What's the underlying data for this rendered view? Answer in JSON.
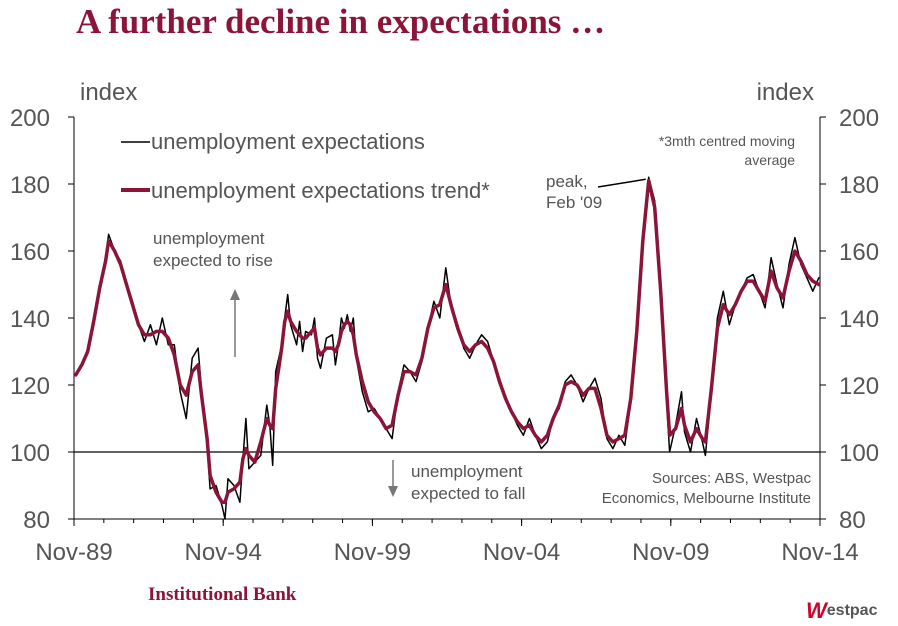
{
  "page_title": "A further decline in expectations …",
  "footer": {
    "institutional_bank": "Institutional Bank",
    "westpac_logo_mark": "W",
    "westpac_logo_text": "estpac",
    "brand_color": "#8b1538",
    "westpac_red": "#d5002b"
  },
  "chart_data": {
    "type": "line",
    "ylim": [
      80,
      200
    ],
    "yticks": [
      80,
      100,
      120,
      140,
      160,
      180,
      200
    ],
    "ylabel_left": "index",
    "ylabel_right": "index",
    "x_range": [
      1989.84,
      2014.84
    ],
    "x_tick_labels": [
      "Nov-89",
      "Nov-94",
      "Nov-99",
      "Nov-04",
      "Nov-09",
      "Nov-14"
    ],
    "x_tick_positions": [
      1989.84,
      1994.84,
      1999.84,
      2004.84,
      2009.84,
      2014.84
    ],
    "reference_line": 100,
    "grid": false,
    "legend_position": "top-left",
    "annotations": {
      "footnote": "*3mth centred moving average",
      "peak": "peak, Feb '09",
      "rise": "unemployment expected to rise",
      "fall": "unemployment expected to fall",
      "sources": "Sources: ABS, Westpac Economics, Melbourne Institute"
    },
    "peak_point": [
      2009.1,
      182
    ],
    "series": [
      {
        "name": "unemployment expectations",
        "color": "#000000",
        "points": [
          [
            1989.9,
            123
          ],
          [
            1990.1,
            126
          ],
          [
            1990.3,
            130
          ],
          [
            1990.5,
            140
          ],
          [
            1990.7,
            150
          ],
          [
            1990.9,
            158
          ],
          [
            1991.0,
            165
          ],
          [
            1991.2,
            160
          ],
          [
            1991.4,
            157
          ],
          [
            1991.6,
            150
          ],
          [
            1991.8,
            145
          ],
          [
            1992.0,
            138
          ],
          [
            1992.2,
            133
          ],
          [
            1992.4,
            138
          ],
          [
            1992.6,
            132
          ],
          [
            1992.8,
            140
          ],
          [
            1993.0,
            132
          ],
          [
            1993.2,
            132
          ],
          [
            1993.4,
            118
          ],
          [
            1993.6,
            110
          ],
          [
            1993.8,
            128
          ],
          [
            1994.0,
            131
          ],
          [
            1994.1,
            120
          ],
          [
            1994.3,
            102
          ],
          [
            1994.4,
            89
          ],
          [
            1994.6,
            90
          ],
          [
            1994.8,
            84
          ],
          [
            1994.9,
            80
          ],
          [
            1995.0,
            92
          ],
          [
            1995.2,
            90
          ],
          [
            1995.4,
            85
          ],
          [
            1995.5,
            98
          ],
          [
            1995.6,
            110
          ],
          [
            1995.7,
            95
          ],
          [
            1995.9,
            97
          ],
          [
            1996.1,
            99
          ],
          [
            1996.3,
            114
          ],
          [
            1996.4,
            108
          ],
          [
            1996.5,
            96
          ],
          [
            1996.6,
            124
          ],
          [
            1996.8,
            132
          ],
          [
            1996.9,
            140
          ],
          [
            1997.0,
            147
          ],
          [
            1997.1,
            138
          ],
          [
            1997.3,
            132
          ],
          [
            1997.4,
            139
          ],
          [
            1997.5,
            130
          ],
          [
            1997.6,
            136
          ],
          [
            1997.8,
            135
          ],
          [
            1997.9,
            140
          ],
          [
            1998.0,
            128
          ],
          [
            1998.1,
            125
          ],
          [
            1998.3,
            134
          ],
          [
            1998.5,
            135
          ],
          [
            1998.6,
            126
          ],
          [
            1998.7,
            132
          ],
          [
            1998.8,
            140
          ],
          [
            1998.9,
            137
          ],
          [
            1999.0,
            141
          ],
          [
            1999.1,
            136
          ],
          [
            1999.2,
            140
          ],
          [
            1999.3,
            128
          ],
          [
            1999.5,
            118
          ],
          [
            1999.7,
            112
          ],
          [
            1999.9,
            113
          ],
          [
            2000.1,
            110
          ],
          [
            2000.3,
            107
          ],
          [
            2000.5,
            104
          ],
          [
            2000.7,
            118
          ],
          [
            2000.9,
            126
          ],
          [
            2001.1,
            124
          ],
          [
            2001.3,
            121
          ],
          [
            2001.5,
            127
          ],
          [
            2001.7,
            137
          ],
          [
            2001.9,
            145
          ],
          [
            2002.1,
            140
          ],
          [
            2002.3,
            155
          ],
          [
            2002.5,
            142
          ],
          [
            2002.7,
            138
          ],
          [
            2002.9,
            131
          ],
          [
            2003.1,
            128
          ],
          [
            2003.3,
            132
          ],
          [
            2003.5,
            135
          ],
          [
            2003.7,
            133
          ],
          [
            2003.9,
            127
          ],
          [
            2004.1,
            122
          ],
          [
            2004.3,
            116
          ],
          [
            2004.5,
            112
          ],
          [
            2004.7,
            108
          ],
          [
            2004.9,
            105
          ],
          [
            2005.1,
            110
          ],
          [
            2005.3,
            105
          ],
          [
            2005.5,
            101
          ],
          [
            2005.7,
            103
          ],
          [
            2005.9,
            110
          ],
          [
            2006.1,
            113
          ],
          [
            2006.3,
            121
          ],
          [
            2006.5,
            123
          ],
          [
            2006.7,
            120
          ],
          [
            2006.9,
            115
          ],
          [
            2007.1,
            119
          ],
          [
            2007.3,
            122
          ],
          [
            2007.5,
            116
          ],
          [
            2007.7,
            104
          ],
          [
            2007.9,
            101
          ],
          [
            2008.1,
            105
          ],
          [
            2008.3,
            102
          ],
          [
            2008.5,
            115
          ],
          [
            2008.7,
            135
          ],
          [
            2008.9,
            165
          ],
          [
            2009.1,
            182
          ],
          [
            2009.3,
            175
          ],
          [
            2009.5,
            150
          ],
          [
            2009.7,
            115
          ],
          [
            2009.8,
            100
          ],
          [
            2010.0,
            108
          ],
          [
            2010.2,
            118
          ],
          [
            2010.3,
            106
          ],
          [
            2010.5,
            100
          ],
          [
            2010.7,
            110
          ],
          [
            2010.9,
            103
          ],
          [
            2011.0,
            99
          ],
          [
            2011.2,
            118
          ],
          [
            2011.4,
            140
          ],
          [
            2011.6,
            148
          ],
          [
            2011.8,
            138
          ],
          [
            2012.0,
            144
          ],
          [
            2012.2,
            148
          ],
          [
            2012.4,
            152
          ],
          [
            2012.6,
            153
          ],
          [
            2012.8,
            148
          ],
          [
            2013.0,
            143
          ],
          [
            2013.2,
            158
          ],
          [
            2013.4,
            150
          ],
          [
            2013.6,
            143
          ],
          [
            2013.8,
            156
          ],
          [
            2014.0,
            164
          ],
          [
            2014.2,
            156
          ],
          [
            2014.4,
            152
          ],
          [
            2014.6,
            148
          ],
          [
            2014.8,
            152
          ]
        ]
      },
      {
        "name": "unemployment expectations trend*",
        "color": "#8b1538",
        "points": [
          [
            1989.9,
            123
          ],
          [
            1990.1,
            126
          ],
          [
            1990.3,
            130
          ],
          [
            1990.5,
            139
          ],
          [
            1990.7,
            149
          ],
          [
            1990.9,
            157
          ],
          [
            1991.0,
            163
          ],
          [
            1991.2,
            160
          ],
          [
            1991.4,
            156
          ],
          [
            1991.6,
            150
          ],
          [
            1991.8,
            144
          ],
          [
            1992.0,
            138
          ],
          [
            1992.2,
            135
          ],
          [
            1992.4,
            135
          ],
          [
            1992.6,
            136
          ],
          [
            1992.8,
            136
          ],
          [
            1993.0,
            134
          ],
          [
            1993.2,
            129
          ],
          [
            1993.4,
            120
          ],
          [
            1993.6,
            117
          ],
          [
            1993.8,
            124
          ],
          [
            1994.0,
            126
          ],
          [
            1994.1,
            118
          ],
          [
            1994.3,
            104
          ],
          [
            1994.4,
            93
          ],
          [
            1994.6,
            88
          ],
          [
            1994.8,
            85
          ],
          [
            1994.9,
            85
          ],
          [
            1995.0,
            88
          ],
          [
            1995.2,
            89
          ],
          [
            1995.4,
            91
          ],
          [
            1995.5,
            98
          ],
          [
            1995.6,
            101
          ],
          [
            1995.7,
            99
          ],
          [
            1995.9,
            97
          ],
          [
            1996.1,
            103
          ],
          [
            1996.3,
            110
          ],
          [
            1996.4,
            108
          ],
          [
            1996.5,
            107
          ],
          [
            1996.6,
            119
          ],
          [
            1996.8,
            131
          ],
          [
            1996.9,
            139
          ],
          [
            1997.0,
            142
          ],
          [
            1997.1,
            139
          ],
          [
            1997.3,
            136
          ],
          [
            1997.4,
            135
          ],
          [
            1997.5,
            134
          ],
          [
            1997.6,
            134
          ],
          [
            1997.8,
            136
          ],
          [
            1997.9,
            137
          ],
          [
            1998.0,
            131
          ],
          [
            1998.1,
            129
          ],
          [
            1998.3,
            131
          ],
          [
            1998.5,
            131
          ],
          [
            1998.6,
            130
          ],
          [
            1998.7,
            132
          ],
          [
            1998.8,
            136
          ],
          [
            1998.9,
            138
          ],
          [
            1999.0,
            139
          ],
          [
            1999.1,
            138
          ],
          [
            1999.2,
            135
          ],
          [
            1999.3,
            129
          ],
          [
            1999.5,
            121
          ],
          [
            1999.7,
            115
          ],
          [
            1999.9,
            112
          ],
          [
            2000.1,
            110
          ],
          [
            2000.3,
            107
          ],
          [
            2000.5,
            108
          ],
          [
            2000.7,
            117
          ],
          [
            2000.9,
            124
          ],
          [
            2001.1,
            124
          ],
          [
            2001.3,
            123
          ],
          [
            2001.5,
            128
          ],
          [
            2001.7,
            137
          ],
          [
            2001.9,
            143
          ],
          [
            2002.1,
            144
          ],
          [
            2002.3,
            150
          ],
          [
            2002.5,
            143
          ],
          [
            2002.7,
            137
          ],
          [
            2002.9,
            132
          ],
          [
            2003.1,
            130
          ],
          [
            2003.3,
            132
          ],
          [
            2003.5,
            133
          ],
          [
            2003.7,
            131
          ],
          [
            2003.9,
            127
          ],
          [
            2004.1,
            121
          ],
          [
            2004.3,
            116
          ],
          [
            2004.5,
            112
          ],
          [
            2004.7,
            109
          ],
          [
            2004.9,
            107
          ],
          [
            2005.1,
            108
          ],
          [
            2005.3,
            105
          ],
          [
            2005.5,
            103
          ],
          [
            2005.7,
            105
          ],
          [
            2005.9,
            110
          ],
          [
            2006.1,
            114
          ],
          [
            2006.3,
            120
          ],
          [
            2006.5,
            121
          ],
          [
            2006.7,
            120
          ],
          [
            2006.9,
            117
          ],
          [
            2007.1,
            119
          ],
          [
            2007.3,
            119
          ],
          [
            2007.5,
            113
          ],
          [
            2007.7,
            105
          ],
          [
            2007.9,
            103
          ],
          [
            2008.1,
            104
          ],
          [
            2008.3,
            105
          ],
          [
            2008.5,
            116
          ],
          [
            2008.7,
            136
          ],
          [
            2008.9,
            163
          ],
          [
            2009.1,
            181
          ],
          [
            2009.3,
            173
          ],
          [
            2009.5,
            148
          ],
          [
            2009.7,
            118
          ],
          [
            2009.8,
            105
          ],
          [
            2010.0,
            107
          ],
          [
            2010.2,
            113
          ],
          [
            2010.3,
            108
          ],
          [
            2010.5,
            103
          ],
          [
            2010.7,
            107
          ],
          [
            2010.9,
            104
          ],
          [
            2011.0,
            103
          ],
          [
            2011.2,
            119
          ],
          [
            2011.4,
            137
          ],
          [
            2011.6,
            144
          ],
          [
            2011.8,
            141
          ],
          [
            2012.0,
            144
          ],
          [
            2012.2,
            148
          ],
          [
            2012.4,
            151
          ],
          [
            2012.6,
            151
          ],
          [
            2012.8,
            148
          ],
          [
            2013.0,
            145
          ],
          [
            2013.2,
            154
          ],
          [
            2013.4,
            149
          ],
          [
            2013.6,
            146
          ],
          [
            2013.8,
            154
          ],
          [
            2014.0,
            160
          ],
          [
            2014.2,
            157
          ],
          [
            2014.4,
            153
          ],
          [
            2014.6,
            151
          ],
          [
            2014.8,
            150
          ]
        ]
      }
    ]
  }
}
